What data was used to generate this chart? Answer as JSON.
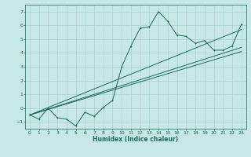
{
  "xlabel": "Humidex (Indice chaleur)",
  "bg_color": "#c8e8e8",
  "grid_color": "#a8d0d0",
  "line_color": "#1a6b5a",
  "xlim": [
    -0.5,
    23.5
  ],
  "ylim": [
    -1.5,
    7.5
  ],
  "xticks": [
    0,
    1,
    2,
    3,
    4,
    5,
    6,
    7,
    8,
    9,
    10,
    11,
    12,
    13,
    14,
    15,
    16,
    17,
    18,
    19,
    20,
    21,
    22,
    23
  ],
  "yticks": [
    -1,
    0,
    1,
    2,
    3,
    4,
    5,
    6,
    7
  ],
  "line1_x": [
    0,
    1,
    2,
    3,
    4,
    5,
    6,
    7,
    8,
    9,
    10,
    11,
    12,
    13,
    14,
    15,
    16,
    17,
    18,
    19,
    20,
    21,
    22,
    23
  ],
  "line1_y": [
    -0.5,
    -0.8,
    0.0,
    -0.7,
    -0.8,
    -1.3,
    -0.3,
    -0.6,
    0.05,
    0.55,
    3.0,
    4.5,
    5.8,
    5.9,
    7.0,
    6.3,
    5.3,
    5.2,
    4.7,
    4.9,
    4.2,
    4.2,
    4.5,
    6.1
  ],
  "line3_x": [
    0,
    23
  ],
  "line3_y": [
    -0.5,
    4.1
  ],
  "line4_x": [
    0,
    23
  ],
  "line4_y": [
    -0.5,
    4.4
  ],
  "line5_x": [
    0,
    23
  ],
  "line5_y": [
    -0.5,
    5.7
  ],
  "xlabel_fontsize": 5.5,
  "tick_fontsize": 4.5,
  "lw": 0.7,
  "marker_size": 2.0
}
